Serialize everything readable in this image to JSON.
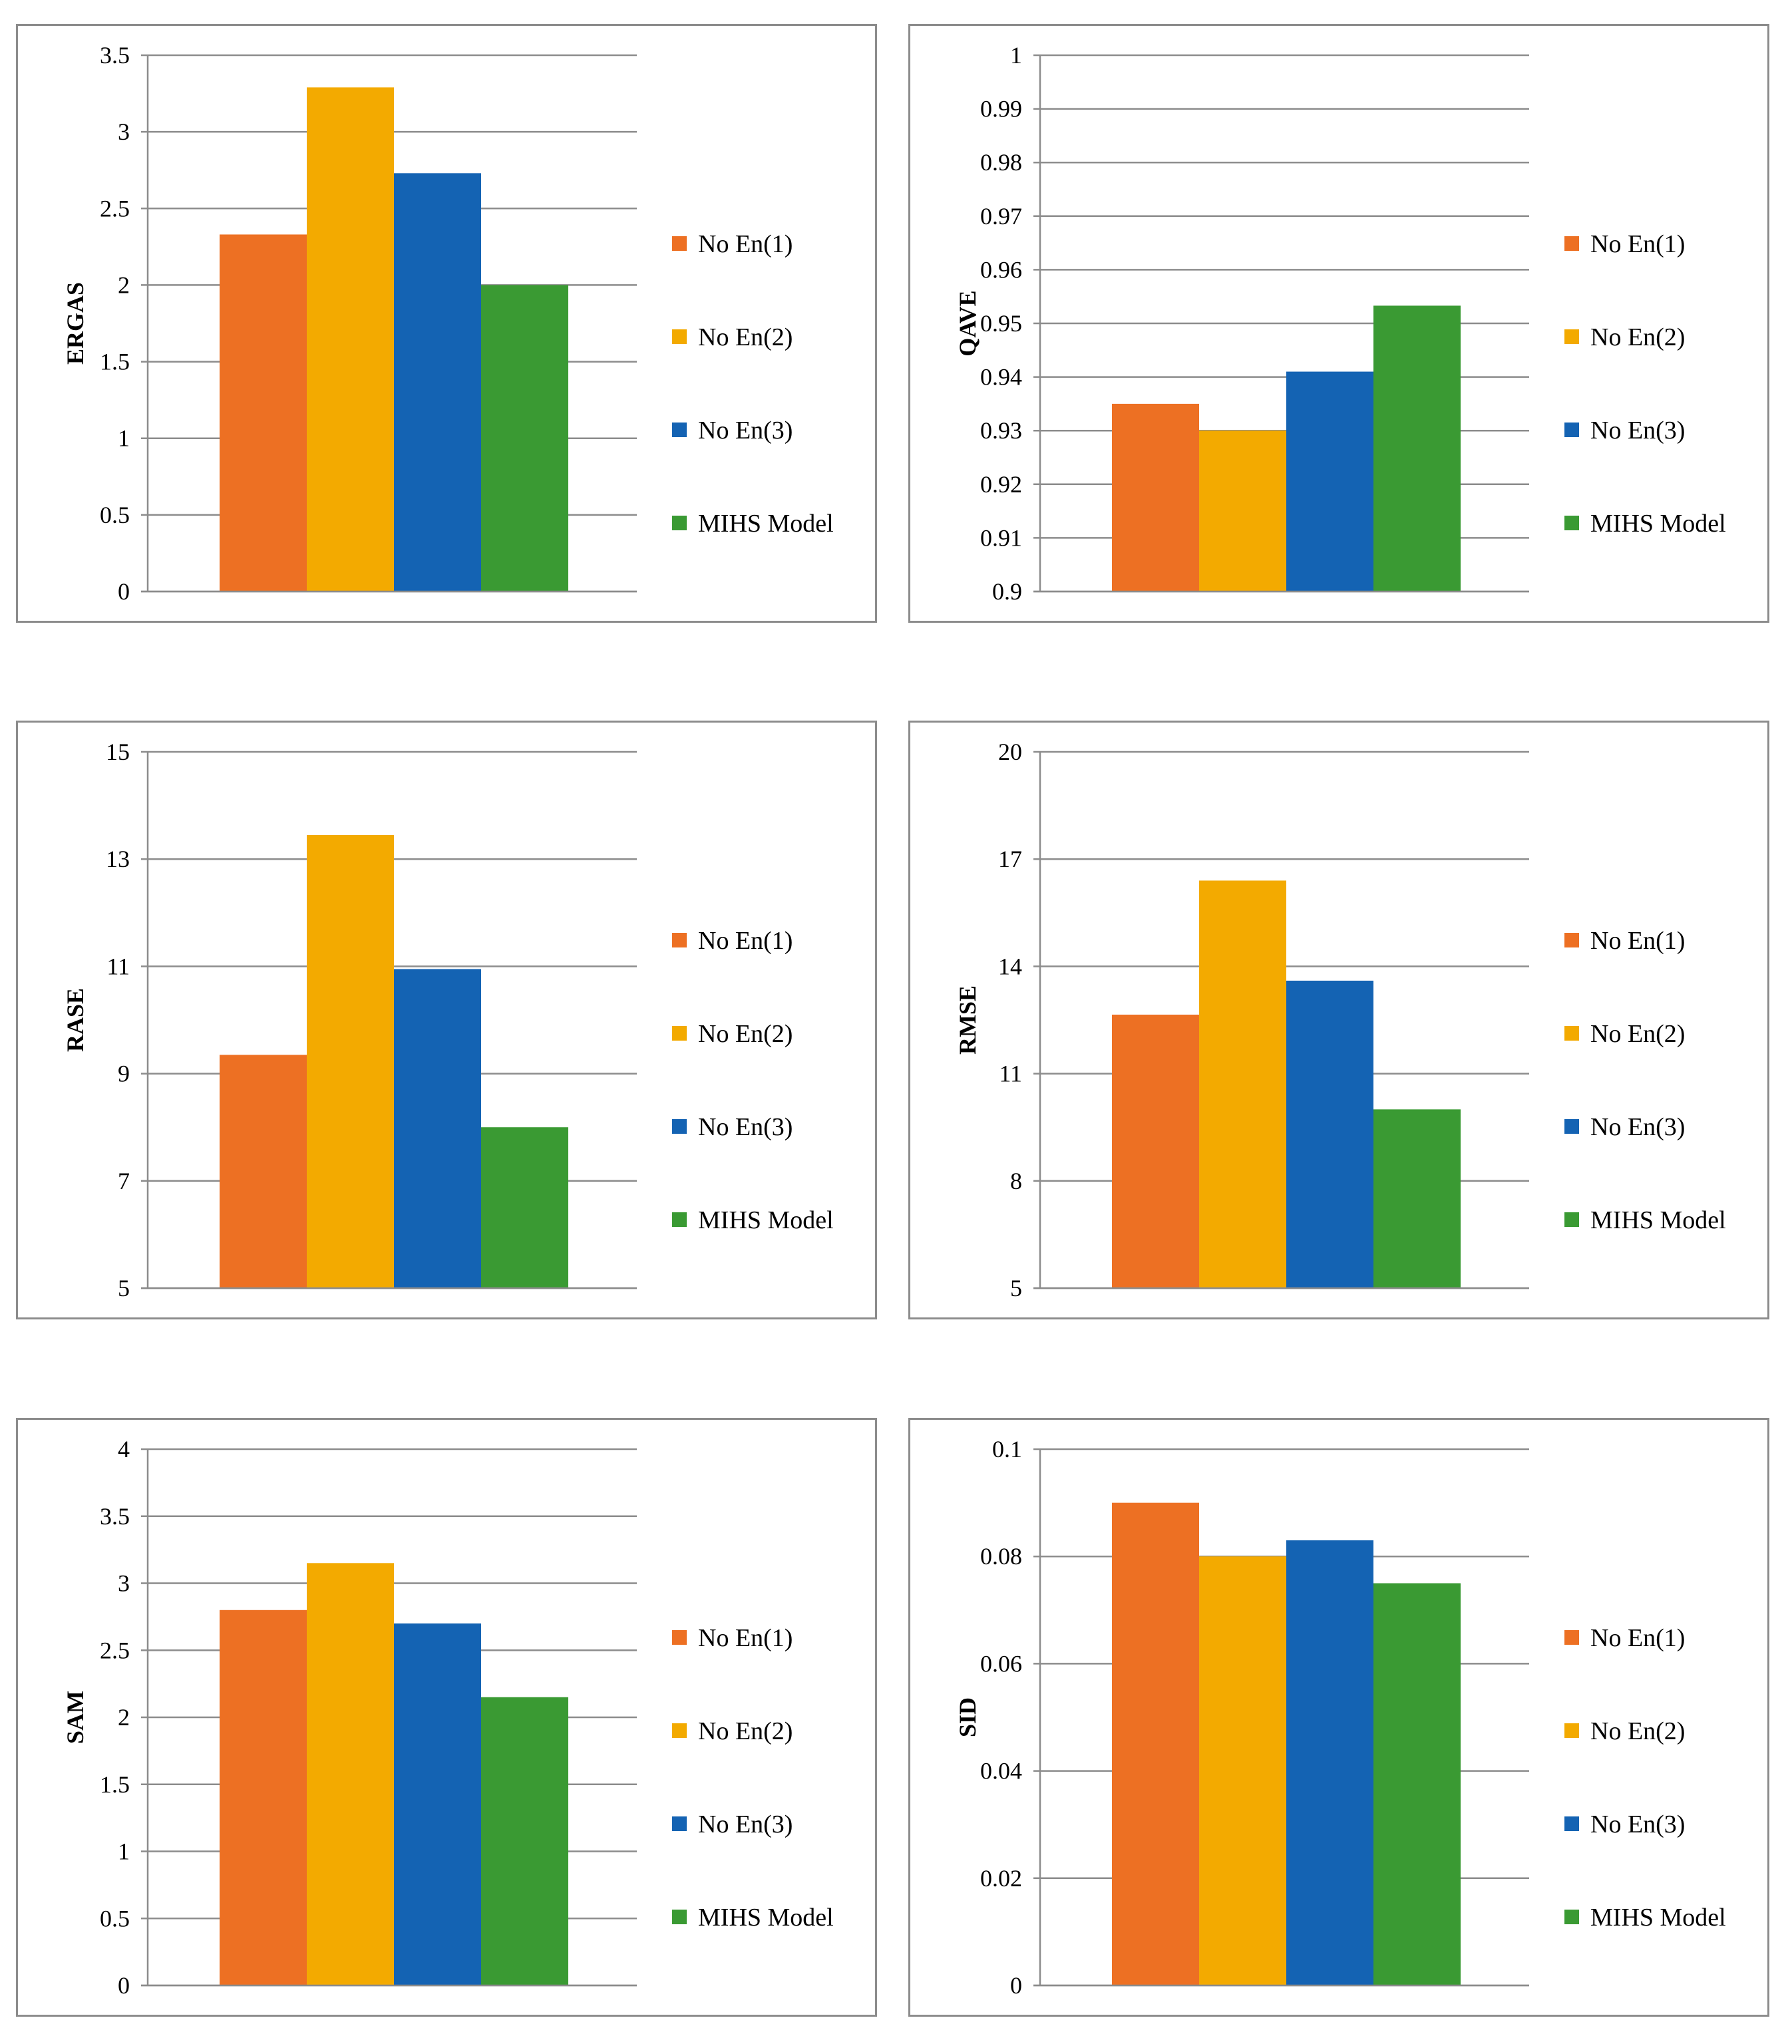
{
  "chart_data": [
    {
      "type": "bar",
      "ylabel": "ERGAS",
      "ylim": [
        0,
        3.5
      ],
      "yticks": [
        "0",
        "0.5",
        "1",
        "1.5",
        "2",
        "2.5",
        "3",
        "3.5"
      ],
      "series": [
        {
          "name": "No En(1)",
          "color": "#ED7023",
          "value": 2.33
        },
        {
          "name": "No En(2)",
          "color": "#F3AA00",
          "value": 3.29
        },
        {
          "name": "No En(3)",
          "color": "#1463B3",
          "value": 2.73
        },
        {
          "name": "MIHS Model",
          "color": "#3A9A33",
          "value": 2.0
        }
      ],
      "legend": "right",
      "grid": true
    },
    {
      "type": "bar",
      "ylabel": "QAVE",
      "ylim": [
        0.9,
        1
      ],
      "yticks": [
        "0.9",
        "0.91",
        "0.92",
        "0.93",
        "0.94",
        "0.95",
        "0.96",
        "0.97",
        "0.98",
        "0.99",
        "1"
      ],
      "series": [
        {
          "name": "No En(1)",
          "color": "#ED7023",
          "value": 0.935
        },
        {
          "name": "No En(2)",
          "color": "#F3AA00",
          "value": 0.93
        },
        {
          "name": "No En(3)",
          "color": "#1463B3",
          "value": 0.941
        },
        {
          "name": "MIHS Model",
          "color": "#3A9A33",
          "value": 0.9533
        }
      ],
      "legend": "right",
      "grid": true
    },
    {
      "type": "bar",
      "ylabel": "RASE",
      "ylim": [
        5,
        15
      ],
      "yticks": [
        "5",
        "7",
        "9",
        "11",
        "13",
        "15"
      ],
      "series": [
        {
          "name": "No En(1)",
          "color": "#ED7023",
          "value": 9.35
        },
        {
          "name": "No En(2)",
          "color": "#F3AA00",
          "value": 13.45
        },
        {
          "name": "No En(3)",
          "color": "#1463B3",
          "value": 10.95
        },
        {
          "name": "MIHS Model",
          "color": "#3A9A33",
          "value": 8.0
        }
      ],
      "legend": "right",
      "grid": true
    },
    {
      "type": "bar",
      "ylabel": "RMSE",
      "ylim": [
        5,
        20
      ],
      "yticks": [
        "5",
        "8",
        "11",
        "14",
        "17",
        "20"
      ],
      "series": [
        {
          "name": "No En(1)",
          "color": "#ED7023",
          "value": 12.65
        },
        {
          "name": "No En(2)",
          "color": "#F3AA00",
          "value": 16.4
        },
        {
          "name": "No En(3)",
          "color": "#1463B3",
          "value": 13.6
        },
        {
          "name": "MIHS Model",
          "color": "#3A9A33",
          "value": 10.0
        }
      ],
      "legend": "right",
      "grid": true
    },
    {
      "type": "bar",
      "ylabel": "SAM",
      "ylim": [
        0,
        4
      ],
      "yticks": [
        "0",
        "0.5",
        "1",
        "1.5",
        "2",
        "2.5",
        "3",
        "3.5",
        "4"
      ],
      "series": [
        {
          "name": "No En(1)",
          "color": "#ED7023",
          "value": 2.8
        },
        {
          "name": "No En(2)",
          "color": "#F3AA00",
          "value": 3.15
        },
        {
          "name": "No En(3)",
          "color": "#1463B3",
          "value": 2.7
        },
        {
          "name": "MIHS Model",
          "color": "#3A9A33",
          "value": 2.15
        }
      ],
      "legend": "right",
      "grid": true
    },
    {
      "type": "bar",
      "ylabel": "SID",
      "ylim": [
        0,
        0.1
      ],
      "yticks": [
        "0",
        "0.02",
        "0.04",
        "0.06",
        "0.08",
        "0.1"
      ],
      "series": [
        {
          "name": "No En(1)",
          "color": "#ED7023",
          "value": 0.09
        },
        {
          "name": "No En(2)",
          "color": "#F3AA00",
          "value": 0.08
        },
        {
          "name": "No En(3)",
          "color": "#1463B3",
          "value": 0.083
        },
        {
          "name": "MIHS Model",
          "color": "#3A9A33",
          "value": 0.075
        }
      ],
      "legend": "right",
      "grid": true
    }
  ]
}
